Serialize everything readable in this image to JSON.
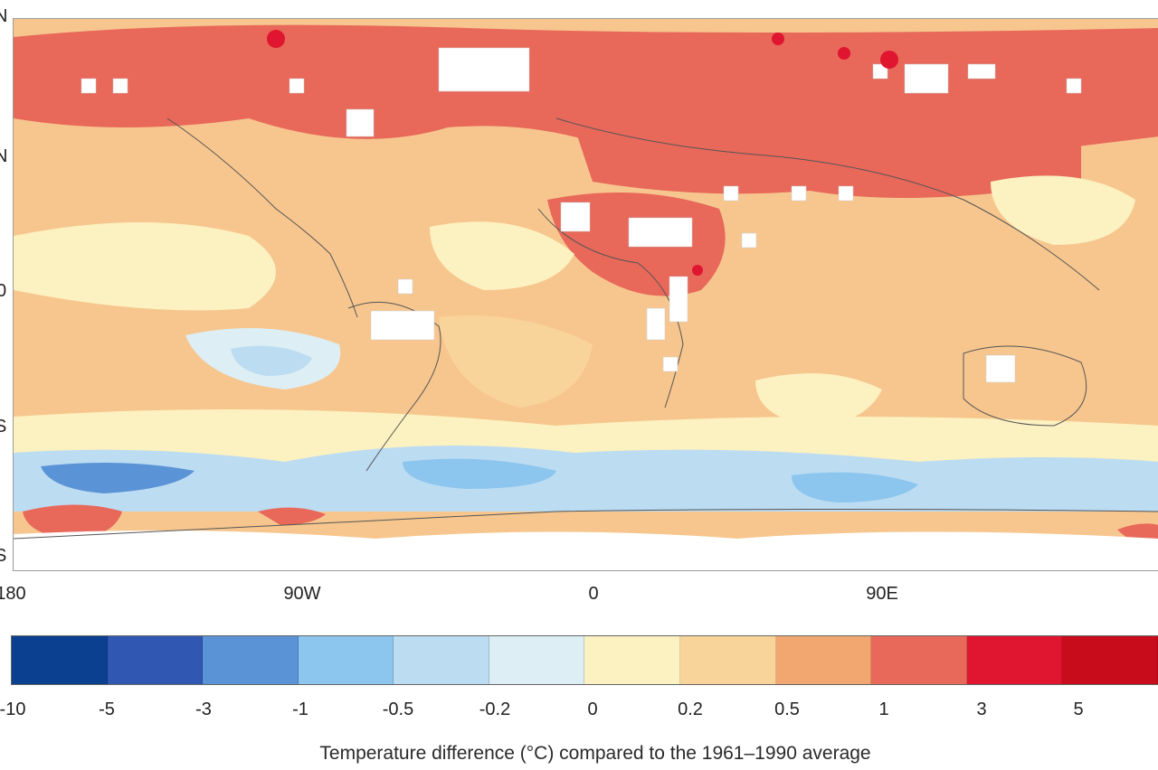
{
  "map": {
    "lat_ticks": [
      "N",
      "N",
      "0",
      "S",
      "S"
    ],
    "lon_labels": [
      "180",
      "90W",
      "0",
      "90E"
    ],
    "legend": {
      "colors": [
        "#0b3f8f",
        "#3058b2",
        "#5a93d6",
        "#8cc5ee",
        "#bcdcf2",
        "#ddeef5",
        "#fcf1c0",
        "#f9d49a",
        "#f2a770",
        "#e8685a",
        "#e01530",
        "#c80c1c"
      ],
      "labels": [
        "-10",
        "-5",
        "-3",
        "-1",
        "-0.5",
        "-0.2",
        "0",
        "0.2",
        "0.5",
        "1",
        "3",
        "5"
      ],
      "caption": "Temperature difference (°C) compared to the 1961–1990 average"
    }
  }
}
